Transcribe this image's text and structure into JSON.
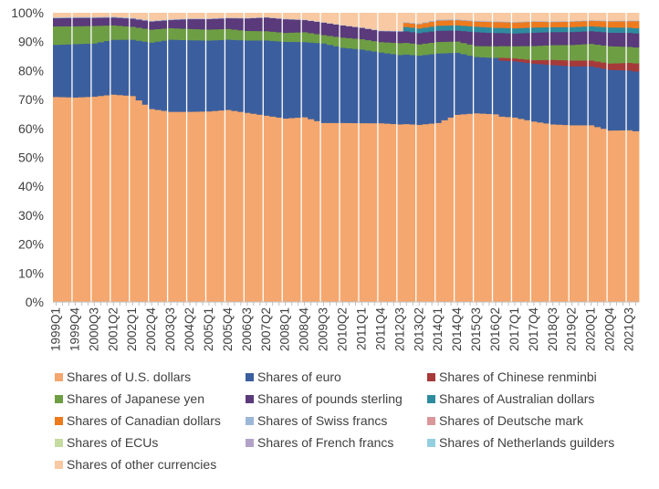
{
  "chart_data": {
    "type": "bar",
    "stacked": true,
    "title": "",
    "xlabel": "",
    "ylabel": "",
    "ylim": [
      0,
      100
    ],
    "y_ticks": [
      "0%",
      "10%",
      "20%",
      "30%",
      "40%",
      "50%",
      "60%",
      "70%",
      "80%",
      "90%",
      "100%"
    ],
    "x_tick_labels": [
      "1999Q1",
      "1999Q4",
      "2000Q3",
      "2001Q2",
      "2002Q1",
      "2002Q4",
      "2003Q3",
      "2004Q2",
      "2005Q1",
      "2005Q4",
      "2006Q3",
      "2007Q2",
      "2008Q1",
      "2008Q4",
      "2009Q3",
      "2010Q2",
      "2011Q1",
      "2011Q4",
      "2012Q3",
      "2013Q2",
      "2014Q1",
      "2014Q4",
      "2015Q3",
      "2016Q2",
      "2017Q1",
      "2017Q4",
      "2018Q3",
      "2019Q2",
      "2020Q1",
      "2020Q4",
      "2021Q3"
    ],
    "categories_start": "1999Q1",
    "categories_end": "2021Q4",
    "period_count": 92,
    "legend_position": "bottom",
    "series": [
      {
        "name": "Shares of U.S. dollars",
        "color": "#f4a76e",
        "keyframes": [
          [
            "1999Q1",
            71.0
          ],
          [
            "1999Q4",
            71.0
          ],
          [
            "2000Q3",
            71.5
          ],
          [
            "2001Q2",
            72.0
          ],
          [
            "2002Q1",
            71.5
          ],
          [
            "2002Q4",
            67.0
          ],
          [
            "2003Q3",
            66.0
          ],
          [
            "2004Q2",
            66.0
          ],
          [
            "2005Q1",
            66.0
          ],
          [
            "2005Q4",
            66.5
          ],
          [
            "2006Q3",
            65.5
          ],
          [
            "2007Q2",
            64.5
          ],
          [
            "2008Q1",
            63.5
          ],
          [
            "2008Q4",
            64.0
          ],
          [
            "2009Q3",
            62.0
          ],
          [
            "2010Q2",
            62.0
          ],
          [
            "2011Q1",
            62.0
          ],
          [
            "2011Q4",
            62.0
          ],
          [
            "2012Q3",
            61.5
          ],
          [
            "2013Q2",
            61.5
          ],
          [
            "2014Q1",
            62.0
          ],
          [
            "2014Q4",
            65.0
          ],
          [
            "2015Q3",
            65.5
          ],
          [
            "2016Q2",
            65.0
          ],
          [
            "2017Q1",
            64.0
          ],
          [
            "2017Q4",
            62.5
          ],
          [
            "2018Q3",
            61.5
          ],
          [
            "2019Q2",
            61.5
          ],
          [
            "2020Q1",
            61.5
          ],
          [
            "2020Q4",
            59.5
          ],
          [
            "2021Q3",
            59.0
          ],
          [
            "2021Q4",
            58.8
          ]
        ]
      },
      {
        "name": "Shares of euro",
        "color": "#3b5f9e",
        "keyframes": [
          [
            "1999Q1",
            18.0
          ],
          [
            "1999Q4",
            18.5
          ],
          [
            "2000Q3",
            18.5
          ],
          [
            "2001Q2",
            19.0
          ],
          [
            "2002Q1",
            19.5
          ],
          [
            "2002Q4",
            23.0
          ],
          [
            "2003Q3",
            25.0
          ],
          [
            "2004Q2",
            24.8
          ],
          [
            "2005Q1",
            24.5
          ],
          [
            "2005Q4",
            24.3
          ],
          [
            "2006Q3",
            25.0
          ],
          [
            "2007Q2",
            26.0
          ],
          [
            "2008Q1",
            26.5
          ],
          [
            "2008Q4",
            26.0
          ],
          [
            "2009Q3",
            27.5
          ],
          [
            "2010Q2",
            26.0
          ],
          [
            "2011Q1",
            25.5
          ],
          [
            "2011Q4",
            24.5
          ],
          [
            "2012Q3",
            24.0
          ],
          [
            "2013Q2",
            24.0
          ],
          [
            "2014Q1",
            24.0
          ],
          [
            "2014Q4",
            21.5
          ],
          [
            "2015Q3",
            19.5
          ],
          [
            "2016Q2",
            19.5
          ],
          [
            "2017Q1",
            19.5
          ],
          [
            "2017Q4",
            20.0
          ],
          [
            "2018Q3",
            20.5
          ],
          [
            "2019Q2",
            20.5
          ],
          [
            "2020Q1",
            20.5
          ],
          [
            "2020Q4",
            21.0
          ],
          [
            "2021Q3",
            20.5
          ],
          [
            "2021Q4",
            20.5
          ]
        ]
      },
      {
        "name": "Shares of Chinese renminbi",
        "color": "#a63a3a",
        "keyframes": [
          [
            "1999Q1",
            0
          ],
          [
            "2016Q2",
            0
          ],
          [
            "2016Q3",
            1.0
          ],
          [
            "2017Q1",
            1.0
          ],
          [
            "2017Q4",
            1.2
          ],
          [
            "2018Q3",
            1.8
          ],
          [
            "2019Q2",
            2.0
          ],
          [
            "2020Q1",
            2.0
          ],
          [
            "2020Q4",
            2.2
          ],
          [
            "2021Q3",
            2.6
          ],
          [
            "2021Q4",
            2.8
          ]
        ]
      },
      {
        "name": "Shares of Japanese yen",
        "color": "#6e9e44",
        "keyframes": [
          [
            "1999Q1",
            6.4
          ],
          [
            "1999Q4",
            6.2
          ],
          [
            "2000Q3",
            6.1
          ],
          [
            "2001Q2",
            5.0
          ],
          [
            "2002Q1",
            4.5
          ],
          [
            "2002Q4",
            4.5
          ],
          [
            "2003Q3",
            4.0
          ],
          [
            "2004Q2",
            3.9
          ],
          [
            "2005Q1",
            3.8
          ],
          [
            "2005Q4",
            3.7
          ],
          [
            "2006Q3",
            3.3
          ],
          [
            "2007Q2",
            3.2
          ],
          [
            "2008Q1",
            3.1
          ],
          [
            "2008Q4",
            3.4
          ],
          [
            "2009Q3",
            2.9
          ],
          [
            "2010Q2",
            3.5
          ],
          [
            "2011Q1",
            3.6
          ],
          [
            "2011Q4",
            3.6
          ],
          [
            "2012Q3",
            4.1
          ],
          [
            "2013Q2",
            3.9
          ],
          [
            "2014Q1",
            4.0
          ],
          [
            "2014Q4",
            3.9
          ],
          [
            "2015Q3",
            3.8
          ],
          [
            "2016Q2",
            4.0
          ],
          [
            "2017Q1",
            4.2
          ],
          [
            "2017Q4",
            4.9
          ],
          [
            "2018Q3",
            5.1
          ],
          [
            "2019Q2",
            5.4
          ],
          [
            "2020Q1",
            5.8
          ],
          [
            "2020Q4",
            6.0
          ],
          [
            "2021Q3",
            5.5
          ],
          [
            "2021Q4",
            5.5
          ]
        ]
      },
      {
        "name": "Shares of pounds sterling",
        "color": "#5a3a7a",
        "keyframes": [
          [
            "1999Q1",
            2.8
          ],
          [
            "1999Q4",
            2.9
          ],
          [
            "2000Q3",
            2.8
          ],
          [
            "2001Q2",
            2.7
          ],
          [
            "2002Q1",
            2.8
          ],
          [
            "2002Q4",
            2.8
          ],
          [
            "2003Q3",
            2.8
          ],
          [
            "2004Q2",
            3.4
          ],
          [
            "2005Q1",
            3.6
          ],
          [
            "2005Q4",
            3.7
          ],
          [
            "2006Q3",
            4.3
          ],
          [
            "2007Q2",
            4.7
          ],
          [
            "2008Q1",
            4.7
          ],
          [
            "2008Q4",
            4.2
          ],
          [
            "2009Q3",
            4.3
          ],
          [
            "2010Q2",
            4.2
          ],
          [
            "2011Q1",
            3.9
          ],
          [
            "2011Q4",
            3.8
          ],
          [
            "2012Q3",
            4.0
          ],
          [
            "2013Q2",
            3.9
          ],
          [
            "2014Q1",
            3.9
          ],
          [
            "2014Q4",
            3.8
          ],
          [
            "2015Q3",
            4.8
          ],
          [
            "2016Q2",
            4.6
          ],
          [
            "2017Q1",
            4.4
          ],
          [
            "2017Q4",
            4.6
          ],
          [
            "2018Q3",
            4.5
          ],
          [
            "2019Q2",
            4.5
          ],
          [
            "2020Q1",
            4.4
          ],
          [
            "2020Q4",
            4.7
          ],
          [
            "2021Q3",
            4.8
          ],
          [
            "2021Q4",
            4.8
          ]
        ]
      },
      {
        "name": "Shares of Australian dollars",
        "color": "#2e8b9e",
        "keyframes": [
          [
            "1999Q1",
            0
          ],
          [
            "2012Q3",
            0
          ],
          [
            "2012Q4",
            1.5
          ],
          [
            "2013Q2",
            1.6
          ],
          [
            "2014Q1",
            1.7
          ],
          [
            "2014Q4",
            1.8
          ],
          [
            "2015Q3",
            1.9
          ],
          [
            "2016Q2",
            1.8
          ],
          [
            "2017Q1",
            1.8
          ],
          [
            "2017Q4",
            1.8
          ],
          [
            "2018Q3",
            1.7
          ],
          [
            "2019Q2",
            1.7
          ],
          [
            "2020Q1",
            1.7
          ],
          [
            "2020Q4",
            1.8
          ],
          [
            "2021Q3",
            1.8
          ],
          [
            "2021Q4",
            1.8
          ]
        ]
      },
      {
        "name": "Shares of Canadian dollars",
        "color": "#ee7a1e",
        "keyframes": [
          [
            "1999Q1",
            0
          ],
          [
            "2012Q3",
            0
          ],
          [
            "2012Q4",
            1.4
          ],
          [
            "2013Q2",
            1.5
          ],
          [
            "2014Q1",
            1.8
          ],
          [
            "2014Q4",
            1.8
          ],
          [
            "2015Q3",
            1.8
          ],
          [
            "2016Q2",
            2.0
          ],
          [
            "2017Q1",
            2.0
          ],
          [
            "2017Q4",
            2.0
          ],
          [
            "2018Q3",
            1.8
          ],
          [
            "2019Q2",
            1.9
          ],
          [
            "2020Q1",
            1.9
          ],
          [
            "2020Q4",
            2.1
          ],
          [
            "2021Q3",
            2.2
          ],
          [
            "2021Q4",
            2.4
          ]
        ]
      },
      {
        "name": "Shares of Swiss francs",
        "color": "#9db7d9",
        "keyframes": [
          [
            "1999Q1",
            0.3
          ],
          [
            "2005Q4",
            0.2
          ],
          [
            "2010Q2",
            0.1
          ],
          [
            "2012Q3",
            0.2
          ],
          [
            "2014Q1",
            0.3
          ],
          [
            "2016Q2",
            0.2
          ],
          [
            "2019Q2",
            0.2
          ],
          [
            "2021Q4",
            0.2
          ]
        ]
      },
      {
        "name": "Shares of Deutsche mark",
        "color": "#d9979a",
        "keyframes": [
          [
            "1999Q1",
            0
          ],
          [
            "2021Q4",
            0
          ]
        ]
      },
      {
        "name": "Shares of ECUs",
        "color": "#c4dba1",
        "keyframes": [
          [
            "1999Q1",
            0
          ],
          [
            "2021Q4",
            0
          ]
        ]
      },
      {
        "name": "Shares of French francs",
        "color": "#b3a2c7",
        "keyframes": [
          [
            "1999Q1",
            0
          ],
          [
            "2021Q4",
            0
          ]
        ]
      },
      {
        "name": "Shares of Netherlands guilders",
        "color": "#94cfe0",
        "keyframes": [
          [
            "1999Q1",
            0
          ],
          [
            "2021Q4",
            0
          ]
        ]
      },
      {
        "name": "Shares of other currencies",
        "color": "#f8c9a2",
        "keyframes": [
          [
            "1999Q1",
            1.5
          ],
          [
            "1999Q4",
            1.4
          ],
          [
            "2000Q3",
            1.4
          ],
          [
            "2001Q2",
            1.3
          ],
          [
            "2002Q1",
            1.7
          ],
          [
            "2002Q4",
            2.7
          ],
          [
            "2003Q3",
            2.2
          ],
          [
            "2004Q2",
            1.9
          ],
          [
            "2005Q1",
            1.9
          ],
          [
            "2005Q4",
            1.6
          ],
          [
            "2006Q3",
            1.7
          ],
          [
            "2007Q2",
            1.4
          ],
          [
            "2008Q1",
            2.0
          ],
          [
            "2008Q4",
            2.3
          ],
          [
            "2009Q3",
            3.2
          ],
          [
            "2010Q2",
            4.2
          ],
          [
            "2011Q1",
            5.0
          ],
          [
            "2011Q4",
            6.1
          ],
          [
            "2012Q3",
            6.2
          ],
          [
            "2012Q4",
            3.2
          ],
          [
            "2013Q2",
            3.6
          ],
          [
            "2014Q1",
            2.3
          ],
          [
            "2014Q4",
            2.2
          ],
          [
            "2015Q3",
            2.7
          ],
          [
            "2016Q2",
            2.9
          ],
          [
            "2017Q1",
            3.1
          ],
          [
            "2017Q4",
            2.8
          ],
          [
            "2018Q3",
            2.9
          ],
          [
            "2019Q2",
            2.8
          ],
          [
            "2020Q1",
            2.5
          ],
          [
            "2020Q4",
            2.7
          ],
          [
            "2021Q3",
            2.6
          ],
          [
            "2021Q4",
            2.6
          ]
        ]
      }
    ]
  }
}
